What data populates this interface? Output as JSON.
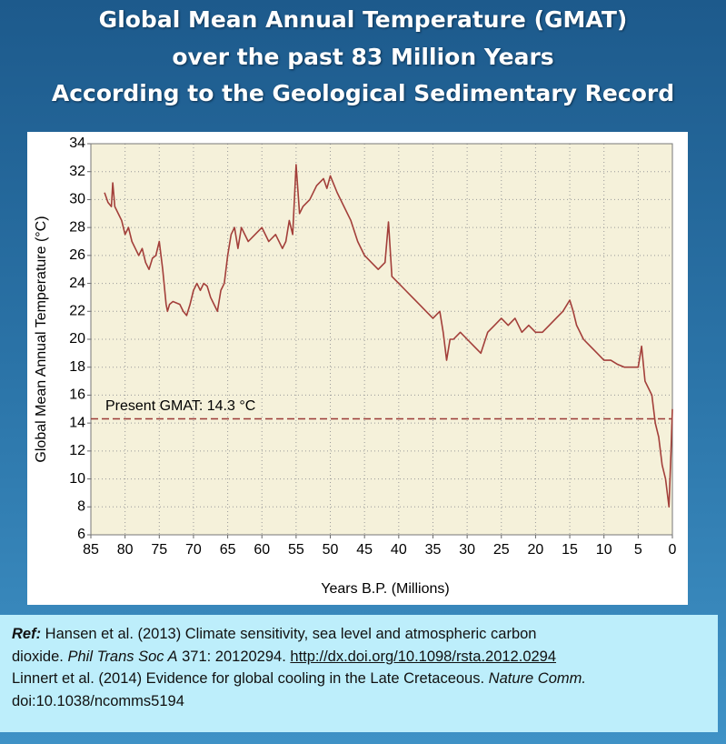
{
  "title_lines": [
    "Global Mean Annual Temperature (GMAT)",
    "over the past 83 Million Years",
    "According to the Geological Sedimentary Record"
  ],
  "chart_data": {
    "type": "line",
    "xlabel": "Years B.P. (Millions)",
    "ylabel": "Global Mean Annual Temperature (°C)",
    "xlim": [
      85,
      0
    ],
    "xticks": [
      85,
      80,
      75,
      70,
      65,
      60,
      55,
      50,
      45,
      40,
      35,
      30,
      25,
      20,
      15,
      10,
      5,
      0
    ],
    "ylim": [
      6,
      34
    ],
    "yticks": [
      6,
      8,
      10,
      12,
      14,
      16,
      18,
      20,
      22,
      24,
      26,
      28,
      30,
      32,
      34
    ],
    "grid": true,
    "series": [
      {
        "color": "#a33f3a",
        "x": [
          83,
          82.5,
          82,
          81.8,
          81.5,
          81,
          80.5,
          80,
          79.5,
          79,
          78.5,
          78,
          77.5,
          77,
          76.5,
          76,
          75.5,
          75,
          74.5,
          74,
          73.8,
          73.5,
          73,
          72,
          71.5,
          71,
          70.5,
          70,
          69.5,
          69,
          68.5,
          68,
          67.5,
          67,
          66.5,
          66,
          65.5,
          65,
          64.5,
          64,
          63.5,
          63,
          62,
          61,
          60,
          59,
          58,
          57,
          56.5,
          56,
          55.5,
          55,
          54.5,
          54,
          53,
          52,
          51,
          50.5,
          50,
          49,
          48,
          47,
          46,
          45,
          44,
          43,
          42,
          41.5,
          41,
          40,
          39,
          38,
          37,
          36,
          35,
          34,
          33.5,
          33,
          32.5,
          32,
          31,
          30,
          29,
          28,
          27,
          26,
          25,
          24,
          23,
          22,
          21,
          20,
          19,
          18,
          17,
          16,
          15,
          14.5,
          14,
          13,
          12,
          11,
          10,
          9,
          8,
          7,
          6,
          5,
          4.5,
          4,
          3.5,
          3,
          2.5,
          2,
          1.5,
          1,
          0.5,
          0.2,
          0
        ],
        "values": [
          30.5,
          29.8,
          29.5,
          31.2,
          29.5,
          29,
          28.5,
          27.5,
          28,
          27,
          26.5,
          26,
          26.5,
          25.5,
          25,
          25.8,
          26,
          27,
          25,
          22.5,
          22,
          22.5,
          22.7,
          22.5,
          22,
          21.7,
          22.5,
          23.5,
          24,
          23.5,
          24,
          23.8,
          23,
          22.5,
          22,
          23.5,
          24,
          26,
          27.5,
          28,
          26.5,
          28,
          27,
          27.5,
          28,
          27,
          27.5,
          26.5,
          27,
          28.5,
          27.5,
          32.5,
          29,
          29.5,
          30,
          31,
          31.5,
          30.8,
          31.7,
          30.5,
          29.5,
          28.5,
          27,
          26,
          25.5,
          25,
          25.5,
          28.4,
          24.5,
          24,
          23.5,
          23,
          22.5,
          22,
          21.5,
          22,
          20.5,
          18.5,
          20,
          20,
          20.5,
          20,
          19.5,
          19,
          20.5,
          21,
          21.5,
          21,
          21.5,
          20.5,
          21,
          20.5,
          20.5,
          21,
          21.5,
          22,
          22.8,
          22,
          21,
          20,
          19.5,
          19,
          18.5,
          18.5,
          18.2,
          18,
          18,
          18,
          19.5,
          17,
          16.5,
          16,
          14,
          13,
          11,
          10,
          8,
          12,
          15
        ]
      }
    ],
    "reference_line": {
      "value": 14.3,
      "label": "Present GMAT: 14.3 °C",
      "color": "#9b3b36"
    }
  },
  "reference": {
    "line1": [
      "Ref:",
      " Hansen et al. (2013) Climate sensitivity, sea level and atmospheric carbon"
    ],
    "line2": [
      "dioxide. ",
      "Phil Trans Soc A",
      " 371: 20120294. ",
      "http://dx.doi.org/10.1098/rsta.2012.0294"
    ],
    "line3": [
      "Linnert et al. (2014) Evidence for global cooling in the Late Cretaceous. ",
      "Nature Comm."
    ],
    "line4": [
      "doi:10.1038/ncomms5194"
    ]
  }
}
